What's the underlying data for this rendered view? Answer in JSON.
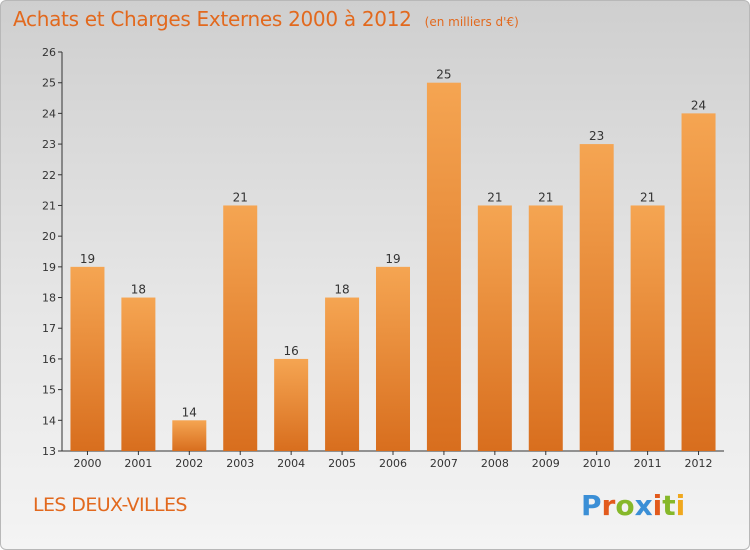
{
  "header": {
    "title": "Achats et Charges Externes 2000 à 2012",
    "subtitle": "(en milliers d'€)"
  },
  "footer": {
    "town": "LES DEUX-VILLES",
    "logo_text": "Proxiti"
  },
  "colors": {
    "accent": "#e2691e",
    "bar_light": "#f5a552",
    "bar_dark": "#d86e1e",
    "logo_letters": [
      "#3b8fd6",
      "#e25a1c",
      "#86b82a",
      "#3b8fd6",
      "#e25a1c",
      "#86b82a",
      "#f0a81e"
    ]
  },
  "chart_data": {
    "type": "bar",
    "title": "Achats et Charges Externes 2000 à 2012",
    "subtitle": "(en milliers d'€)",
    "categories": [
      "2000",
      "2001",
      "2002",
      "2003",
      "2004",
      "2005",
      "2006",
      "2007",
      "2008",
      "2009",
      "2010",
      "2011",
      "2012"
    ],
    "values": [
      19,
      18,
      14,
      21,
      16,
      18,
      19,
      25,
      21,
      21,
      23,
      21,
      24
    ],
    "ylim": [
      13,
      26
    ],
    "yticks": [
      13,
      14,
      15,
      16,
      17,
      18,
      19,
      20,
      21,
      22,
      23,
      24,
      25,
      26
    ],
    "grid": false,
    "xlabel": "",
    "ylabel": ""
  }
}
